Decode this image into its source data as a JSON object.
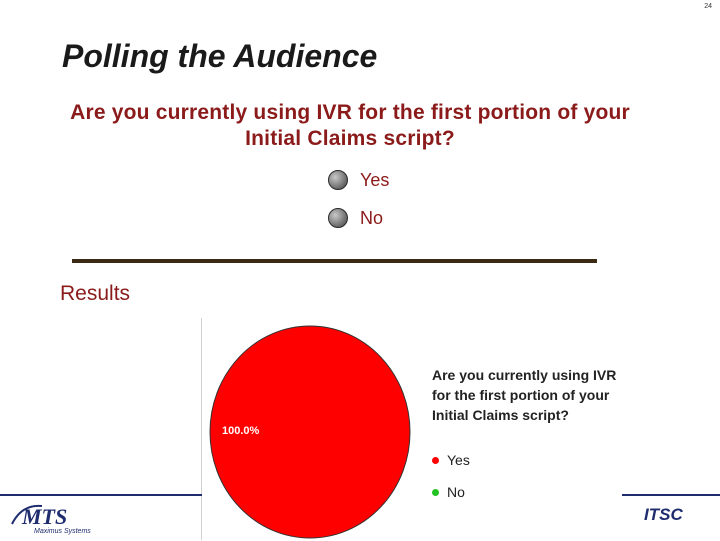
{
  "page_number": "24",
  "title": "Polling the Audience",
  "question": "Are you currently using IVR for the first portion of your Initial Claims script?",
  "options": [
    {
      "label": "Yes"
    },
    {
      "label": "No"
    }
  ],
  "results_label": "Results",
  "chart_data": {
    "type": "pie",
    "title": "Are you currently using IVR for the first portion of your Initial Claims script?",
    "categories": [
      "Yes",
      "No"
    ],
    "values": [
      100.0,
      0.0
    ],
    "data_labels": [
      "100.0%"
    ],
    "colors": [
      "#ff0000",
      "#22c322"
    ],
    "legend_position": "right"
  },
  "logo": {
    "text": "MTS",
    "subtext": "Maximus Systems"
  },
  "footer_brand": "ITSC",
  "colors": {
    "title": "#1a1a1a",
    "question": "#8b1a1a",
    "brand_blue": "#1f2d6e",
    "divider": "#3b2a14"
  }
}
